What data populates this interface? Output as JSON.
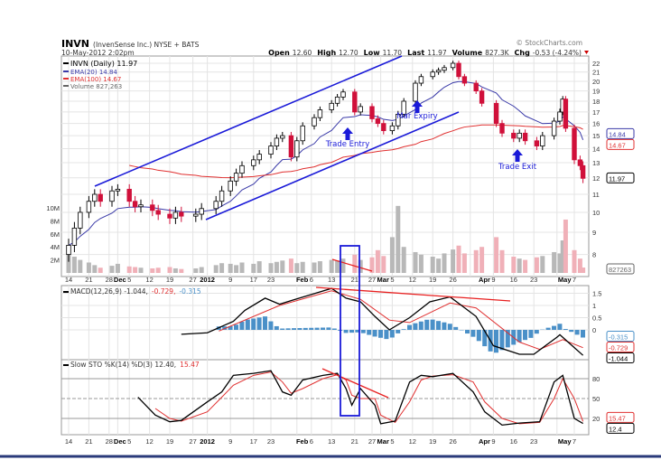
{
  "header": {
    "symbol": "INVN",
    "company": "(InvenSense Inc.) NYSE + BATS",
    "datetime": "10-May-2012 2:02pm",
    "watermark": "© StockCharts.com",
    "open_label": "Open",
    "open": "12.60",
    "high_label": "High",
    "high": "12.70",
    "low_label": "Low",
    "low": "11.70",
    "last_label": "Last",
    "last": "11.97",
    "volume_label": "Volume",
    "volume": "827.3K",
    "chg_label": "Chg",
    "chg": "-0.53 (-4.24%)"
  },
  "legend": {
    "price": "INVN (Daily) 11.97",
    "ema20": "EMA(20) 14.84",
    "ema100": "EMA(100) 14.67",
    "volume": "Volume 827,263",
    "volume_tag": "827263",
    "macd_prefix": "MACD(12,26,9) -1.044,",
    "macd_signal": "-0.729,",
    "macd_hist": "-0.315",
    "sto_prefix": "Slow STO %K(14) %D(3) 12.40,",
    "sto_d": "15.47"
  },
  "colors": {
    "ema20": "#3a3aa8",
    "ema100": "#e03030",
    "up": "#000000",
    "down": "#d0103a",
    "volume_up": "#b8b8b8",
    "volume_down": "#f0b0b8",
    "macd_hist": "#4a90c8",
    "channel": "#1a1ad8",
    "trend": "#e82020"
  },
  "annotations": {
    "trade_entry": "Trade Entry",
    "mar_expiry": "Mar Expiry",
    "trade_exit": "Trade Exit"
  },
  "chart_data": [
    {
      "type": "candlestick",
      "scale": "log",
      "ylim": [
        7.5,
        22.5
      ],
      "yticks": [
        8,
        9,
        10,
        11,
        12,
        13,
        14,
        15,
        16,
        17,
        18,
        19,
        20,
        21,
        22
      ],
      "volume_ticks": [
        "2M",
        "4M",
        "6M",
        "8M",
        "10M"
      ],
      "xticks": [
        [
          "2011-11-14",
          "14"
        ],
        [
          "2011-11-21",
          "21"
        ],
        [
          "2011-11-28",
          "28"
        ],
        [
          "2011-12-01",
          "Dec"
        ],
        [
          "2011-12-05",
          "5"
        ],
        [
          "2011-12-12",
          "12"
        ],
        [
          "2011-12-19",
          "19"
        ],
        [
          "2011-12-27",
          "27"
        ],
        [
          "2012-01-01",
          "2012"
        ],
        [
          "2012-01-09",
          "9"
        ],
        [
          "2012-01-17",
          "17"
        ],
        [
          "2012-01-23",
          "23"
        ],
        [
          "2012-02-01",
          "Feb"
        ],
        [
          "2012-02-06",
          "6"
        ],
        [
          "2012-02-13",
          "13"
        ],
        [
          "2012-02-21",
          "21"
        ],
        [
          "2012-02-27",
          "27"
        ],
        [
          "2012-03-01",
          "Mar"
        ],
        [
          "2012-03-05",
          "5"
        ],
        [
          "2012-03-12",
          "12"
        ],
        [
          "2012-03-19",
          "19"
        ],
        [
          "2012-03-26",
          "26"
        ],
        [
          "2012-04-01",
          "Apr"
        ],
        [
          "2012-04-09",
          "9"
        ],
        [
          "2012-04-16",
          "16"
        ],
        [
          "2012-04-23",
          "23"
        ],
        [
          "2012-05-01",
          "May"
        ],
        [
          "2012-05-07",
          "7"
        ]
      ],
      "dates": [
        "2011-11-14",
        "2011-11-16",
        "2011-11-18",
        "2011-11-21",
        "2011-11-23",
        "2011-11-25",
        "2011-11-29",
        "2011-12-01",
        "2011-12-05",
        "2011-12-07",
        "2011-12-09",
        "2011-12-13",
        "2011-12-15",
        "2011-12-19",
        "2011-12-21",
        "2011-12-23",
        "2011-12-28",
        "2011-12-30",
        "2012-01-04",
        "2012-01-06",
        "2012-01-09",
        "2012-01-11",
        "2012-01-13",
        "2012-01-17",
        "2012-01-19",
        "2012-01-23",
        "2012-01-25",
        "2012-01-27",
        "2012-01-30",
        "2012-02-01",
        "2012-02-03",
        "2012-02-07",
        "2012-02-09",
        "2012-02-13",
        "2012-02-15",
        "2012-02-17",
        "2012-02-21",
        "2012-02-23",
        "2012-02-27",
        "2012-02-29",
        "2012-03-02",
        "2012-03-05",
        "2012-03-07",
        "2012-03-09",
        "2012-03-13",
        "2012-03-15",
        "2012-03-19",
        "2012-03-21",
        "2012-03-23",
        "2012-03-26",
        "2012-03-28",
        "2012-03-30",
        "2012-04-03",
        "2012-04-05",
        "2012-04-10",
        "2012-04-12",
        "2012-04-16",
        "2012-04-18",
        "2012-04-20",
        "2012-04-24",
        "2012-04-26",
        "2012-04-30",
        "2012-05-02",
        "2012-05-03",
        "2012-05-04",
        "2012-05-07",
        "2012-05-09",
        "2012-05-10"
      ],
      "close": [
        8.4,
        9.2,
        10.0,
        10.6,
        11.0,
        10.6,
        11.2,
        11.3,
        10.6,
        10.3,
        10.4,
        10.1,
        9.9,
        9.7,
        10.0,
        9.8,
        9.9,
        10.2,
        10.6,
        11.2,
        11.8,
        12.3,
        12.8,
        13.2,
        13.6,
        14.2,
        14.8,
        15.0,
        13.4,
        14.6,
        15.8,
        16.5,
        17.2,
        17.8,
        18.4,
        18.9,
        17.0,
        17.5,
        16.4,
        16.0,
        15.4,
        15.8,
        16.8,
        18.0,
        19.8,
        20.5,
        21.0,
        21.2,
        21.5,
        22.0,
        20.5,
        19.8,
        19.0,
        17.8,
        16.0,
        15.2,
        14.8,
        15.2,
        14.6,
        14.2,
        15.0,
        16.2,
        17.0,
        18.2,
        15.6,
        13.2,
        12.8,
        11.97
      ],
      "volume_millions": [
        4.0,
        2.5,
        2.0,
        1.6,
        1.2,
        0.8,
        1.1,
        1.4,
        1.0,
        0.9,
        0.8,
        0.7,
        0.8,
        0.9,
        0.7,
        0.6,
        0.7,
        0.9,
        1.2,
        1.5,
        1.4,
        1.2,
        1.6,
        1.4,
        1.8,
        1.5,
        1.7,
        1.9,
        2.2,
        1.5,
        1.7,
        1.6,
        1.8,
        2.0,
        1.9,
        2.2,
        2.8,
        2.0,
        2.4,
        3.5,
        2.6,
        5.5,
        10.3,
        4.0,
        3.2,
        2.8,
        2.5,
        2.2,
        3.0,
        3.6,
        4.2,
        3.0,
        3.5,
        4.0,
        5.5,
        3.5,
        2.5,
        2.2,
        2.0,
        2.4,
        2.6,
        3.2,
        3.0,
        5.0,
        8.2,
        3.5,
        2.2,
        0.83
      ],
      "series": [
        {
          "name": "EMA(20)",
          "value": 14.84
        },
        {
          "name": "EMA(100)",
          "value": 14.67
        }
      ]
    },
    {
      "type": "line",
      "name": "MACD(12,26,9)",
      "ylim": [
        -1.3,
        1.9
      ],
      "yticks": [
        0.0,
        0.5,
        1.0,
        1.5
      ],
      "macd": {
        "dates": [
          "2011-12-23",
          "2012-01-01",
          "2012-01-10",
          "2012-01-14",
          "2012-01-21",
          "2012-01-26",
          "2012-01-30",
          "2012-02-06",
          "2012-02-13",
          "2012-02-18",
          "2012-02-23",
          "2012-02-28",
          "2012-03-04",
          "2012-03-11",
          "2012-03-18",
          "2012-03-25",
          "2012-04-03",
          "2012-04-09",
          "2012-04-18",
          "2012-04-23",
          "2012-05-01",
          "2012-05-02",
          "2012-05-10"
        ],
        "values": [
          -0.18,
          -0.12,
          0.35,
          0.8,
          1.3,
          1.05,
          1.2,
          1.45,
          1.7,
          1.3,
          1.15,
          0.55,
          0.0,
          0.5,
          1.15,
          1.35,
          0.55,
          -0.65,
          -1.0,
          -1.0,
          -0.3,
          -0.2,
          -1.044
        ]
      },
      "signal": {
        "dates": [
          "2012-01-05",
          "2012-01-26",
          "2012-02-13",
          "2012-02-23",
          "2012-03-04",
          "2012-03-11",
          "2012-03-25",
          "2012-04-03",
          "2012-04-18",
          "2012-04-25",
          "2012-05-03",
          "2012-05-10"
        ],
        "values": [
          -0.05,
          1.0,
          1.6,
          1.25,
          0.4,
          0.3,
          1.1,
          0.9,
          -0.5,
          -0.8,
          -0.4,
          -0.729
        ]
      },
      "histogram_last": -0.315
    },
    {
      "type": "line",
      "name": "Slow STO %K(14) %D(3)",
      "ylim": [
        0,
        100
      ],
      "yticks": [
        20,
        50,
        80
      ],
      "dates": [
        "2011-12-08",
        "2011-12-14",
        "2011-12-19",
        "2011-12-23",
        "2012-01-01",
        "2012-01-06",
        "2012-01-10",
        "2012-01-17",
        "2012-01-23",
        "2012-01-27",
        "2012-01-30",
        "2012-02-03",
        "2012-02-10",
        "2012-02-15",
        "2012-02-18",
        "2012-02-20",
        "2012-02-23",
        "2012-02-28",
        "2012-03-01",
        "2012-03-06",
        "2012-03-11",
        "2012-03-15",
        "2012-03-19",
        "2012-03-26",
        "2012-04-02",
        "2012-04-06",
        "2012-04-12",
        "2012-04-18",
        "2012-04-25",
        "2012-04-30",
        "2012-05-03",
        "2012-05-07",
        "2012-05-10"
      ],
      "k": [
        52,
        25,
        15,
        17,
        45,
        60,
        85,
        88,
        92,
        60,
        55,
        78,
        85,
        88,
        65,
        40,
        65,
        40,
        12,
        16,
        75,
        85,
        83,
        88,
        60,
        30,
        10,
        13,
        15,
        75,
        85,
        20,
        12.4
      ],
      "d": [
        null,
        35,
        20,
        16,
        30,
        52,
        70,
        85,
        90,
        75,
        58,
        65,
        80,
        86,
        78,
        55,
        50,
        50,
        25,
        14,
        45,
        78,
        84,
        86,
        75,
        45,
        20,
        12,
        14,
        50,
        80,
        50,
        15.47
      ]
    }
  ]
}
